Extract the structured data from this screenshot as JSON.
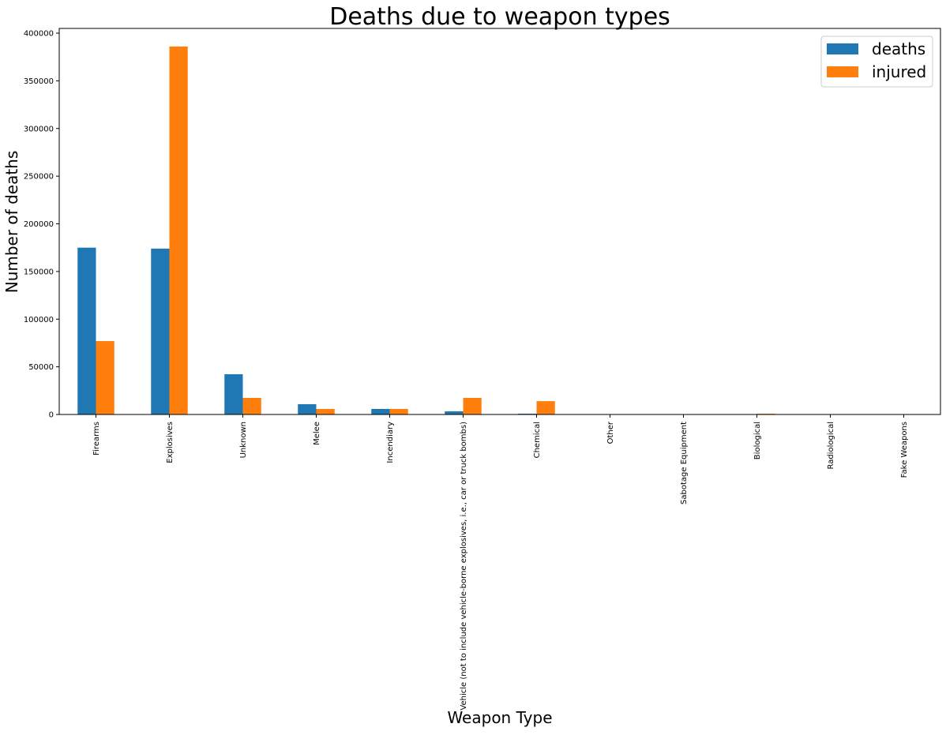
{
  "chart_data": {
    "type": "bar",
    "title": "Deaths due to weapon types",
    "xlabel": "Weapon Type",
    "ylabel": "Number of deaths",
    "ylim": [
      0,
      405000
    ],
    "yticks": [
      0,
      50000,
      100000,
      150000,
      200000,
      250000,
      300000,
      350000,
      400000
    ],
    "grid": false,
    "legend_position": "top-right",
    "categories": [
      "Firearms",
      "Explosives",
      "Unknown",
      "Melee",
      "Incendiary",
      "Vehicle (not to include vehicle-borne explosives, i.e., car or truck bombs)",
      "Chemical",
      "Other",
      "Sabotage Equipment",
      "Biological",
      "Radiological",
      "Fake Weapons"
    ],
    "series": [
      {
        "name": "deaths",
        "color": "#1f77b4",
        "values": [
          175000,
          174000,
          42200,
          10800,
          5800,
          3300,
          800,
          100,
          50,
          10,
          0,
          0
        ]
      },
      {
        "name": "injured",
        "color": "#ff7f0e",
        "values": [
          77000,
          386000,
          17400,
          5800,
          5800,
          17400,
          14000,
          200,
          20,
          800,
          20,
          0
        ]
      }
    ]
  }
}
